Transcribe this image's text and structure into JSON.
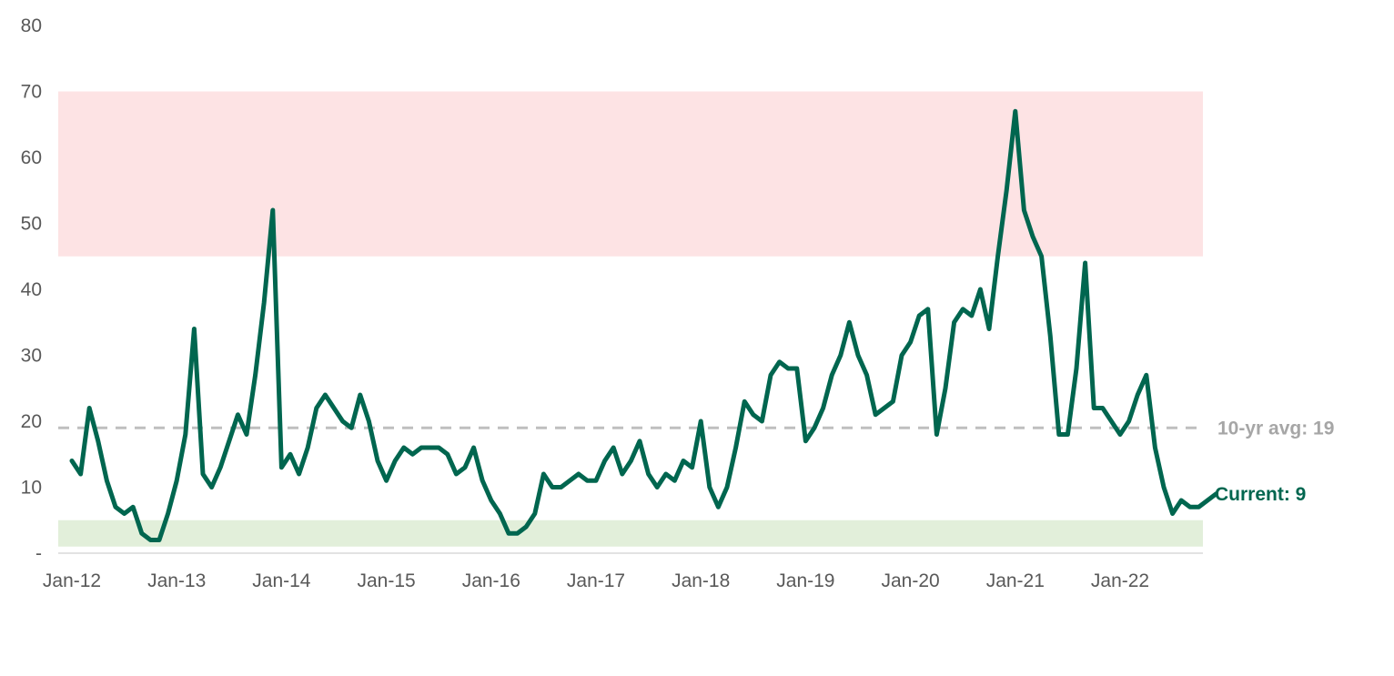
{
  "chart_data": {
    "type": "line",
    "ylim": [
      0,
      80
    ],
    "yticks": [
      {
        "value": 0,
        "label": "-"
      },
      {
        "value": 10,
        "label": "10"
      },
      {
        "value": 20,
        "label": "20"
      },
      {
        "value": 30,
        "label": "30"
      },
      {
        "value": 40,
        "label": "40"
      },
      {
        "value": 50,
        "label": "50"
      },
      {
        "value": 60,
        "label": "60"
      },
      {
        "value": 70,
        "label": "70"
      },
      {
        "value": 80,
        "label": "80"
      }
    ],
    "xlim": [
      "2012-01",
      "2022-12"
    ],
    "xticks": [
      {
        "value": "2012-01",
        "label": "Jan-12"
      },
      {
        "value": "2013-01",
        "label": "Jan-13"
      },
      {
        "value": "2014-01",
        "label": "Jan-14"
      },
      {
        "value": "2015-01",
        "label": "Jan-15"
      },
      {
        "value": "2016-01",
        "label": "Jan-16"
      },
      {
        "value": "2017-01",
        "label": "Jan-17"
      },
      {
        "value": "2018-01",
        "label": "Jan-18"
      },
      {
        "value": "2019-01",
        "label": "Jan-19"
      },
      {
        "value": "2020-01",
        "label": "Jan-20"
      },
      {
        "value": "2021-01",
        "label": "Jan-21"
      },
      {
        "value": "2022-01",
        "label": "Jan-22"
      }
    ],
    "bands": [
      {
        "from": 45,
        "to": 70,
        "color": "#fde3e4"
      },
      {
        "from": 1,
        "to": 5,
        "color": "#e2efda"
      }
    ],
    "reference_line": {
      "value": 19,
      "label": "10-yr avg: 19",
      "color": "#bfbfbf",
      "style": "dashed"
    },
    "current_label": {
      "value": 9,
      "label": "Current: 9",
      "color": "#00664f"
    },
    "grid": false,
    "legend": "none",
    "series": [
      {
        "color": "#00664f",
        "points": [
          [
            "2012-01",
            14
          ],
          [
            "2012-02",
            12
          ],
          [
            "2012-03",
            22
          ],
          [
            "2012-04",
            17
          ],
          [
            "2012-05",
            11
          ],
          [
            "2012-06",
            7
          ],
          [
            "2012-07",
            6
          ],
          [
            "2012-08",
            7
          ],
          [
            "2012-09",
            3
          ],
          [
            "2012-10",
            2
          ],
          [
            "2012-11",
            2
          ],
          [
            "2012-12",
            6
          ],
          [
            "2013-01",
            11
          ],
          [
            "2013-02",
            18
          ],
          [
            "2013-03",
            34
          ],
          [
            "2013-04",
            12
          ],
          [
            "2013-05",
            10
          ],
          [
            "2013-06",
            13
          ],
          [
            "2013-07",
            17
          ],
          [
            "2013-08",
            21
          ],
          [
            "2013-09",
            18
          ],
          [
            "2013-10",
            27
          ],
          [
            "2013-11",
            38
          ],
          [
            "2013-12",
            52
          ],
          [
            "2014-01",
            13
          ],
          [
            "2014-02",
            15
          ],
          [
            "2014-03",
            12
          ],
          [
            "2014-04",
            16
          ],
          [
            "2014-05",
            22
          ],
          [
            "2014-06",
            24
          ],
          [
            "2014-07",
            22
          ],
          [
            "2014-08",
            20
          ],
          [
            "2014-09",
            19
          ],
          [
            "2014-10",
            24
          ],
          [
            "2014-11",
            20
          ],
          [
            "2014-12",
            14
          ],
          [
            "2015-01",
            11
          ],
          [
            "2015-02",
            14
          ],
          [
            "2015-03",
            16
          ],
          [
            "2015-04",
            15
          ],
          [
            "2015-05",
            16
          ],
          [
            "2015-06",
            16
          ],
          [
            "2015-07",
            16
          ],
          [
            "2015-08",
            15
          ],
          [
            "2015-09",
            12
          ],
          [
            "2015-10",
            13
          ],
          [
            "2015-11",
            16
          ],
          [
            "2015-12",
            11
          ],
          [
            "2016-01",
            8
          ],
          [
            "2016-02",
            6
          ],
          [
            "2016-03",
            3
          ],
          [
            "2016-04",
            3
          ],
          [
            "2016-05",
            4
          ],
          [
            "2016-06",
            6
          ],
          [
            "2016-07",
            12
          ],
          [
            "2016-08",
            10
          ],
          [
            "2016-09",
            10
          ],
          [
            "2016-10",
            11
          ],
          [
            "2016-11",
            12
          ],
          [
            "2016-12",
            11
          ],
          [
            "2017-01",
            11
          ],
          [
            "2017-02",
            14
          ],
          [
            "2017-03",
            16
          ],
          [
            "2017-04",
            12
          ],
          [
            "2017-05",
            14
          ],
          [
            "2017-06",
            17
          ],
          [
            "2017-07",
            12
          ],
          [
            "2017-08",
            10
          ],
          [
            "2017-09",
            12
          ],
          [
            "2017-10",
            11
          ],
          [
            "2017-11",
            14
          ],
          [
            "2017-12",
            13
          ],
          [
            "2018-01",
            20
          ],
          [
            "2018-02",
            10
          ],
          [
            "2018-03",
            7
          ],
          [
            "2018-04",
            10
          ],
          [
            "2018-05",
            16
          ],
          [
            "2018-06",
            23
          ],
          [
            "2018-07",
            21
          ],
          [
            "2018-08",
            20
          ],
          [
            "2018-09",
            27
          ],
          [
            "2018-10",
            29
          ],
          [
            "2018-11",
            28
          ],
          [
            "2018-12",
            28
          ],
          [
            "2019-01",
            17
          ],
          [
            "2019-02",
            19
          ],
          [
            "2019-03",
            22
          ],
          [
            "2019-04",
            27
          ],
          [
            "2019-05",
            30
          ],
          [
            "2019-06",
            35
          ],
          [
            "2019-07",
            30
          ],
          [
            "2019-08",
            27
          ],
          [
            "2019-09",
            21
          ],
          [
            "2019-10",
            22
          ],
          [
            "2019-11",
            23
          ],
          [
            "2019-12",
            30
          ],
          [
            "2020-01",
            32
          ],
          [
            "2020-02",
            36
          ],
          [
            "2020-03",
            37
          ],
          [
            "2020-04",
            18
          ],
          [
            "2020-05",
            25
          ],
          [
            "2020-06",
            35
          ],
          [
            "2020-07",
            37
          ],
          [
            "2020-08",
            36
          ],
          [
            "2020-09",
            40
          ],
          [
            "2020-10",
            34
          ],
          [
            "2020-11",
            45
          ],
          [
            "2020-12",
            55
          ],
          [
            "2021-01",
            67
          ],
          [
            "2021-02",
            52
          ],
          [
            "2021-03",
            48
          ],
          [
            "2021-04",
            45
          ],
          [
            "2021-05",
            33
          ],
          [
            "2021-06",
            18
          ],
          [
            "2021-07",
            18
          ],
          [
            "2021-08",
            28
          ],
          [
            "2021-09",
            44
          ],
          [
            "2021-10",
            22
          ],
          [
            "2021-11",
            22
          ],
          [
            "2021-12",
            20
          ],
          [
            "2022-01",
            18
          ],
          [
            "2022-02",
            20
          ],
          [
            "2022-03",
            24
          ],
          [
            "2022-04",
            27
          ],
          [
            "2022-05",
            16
          ],
          [
            "2022-06",
            10
          ],
          [
            "2022-07",
            6
          ],
          [
            "2022-08",
            8
          ],
          [
            "2022-09",
            7
          ],
          [
            "2022-10",
            7
          ],
          [
            "2022-11",
            8
          ],
          [
            "2022-12",
            9
          ]
        ]
      }
    ]
  }
}
